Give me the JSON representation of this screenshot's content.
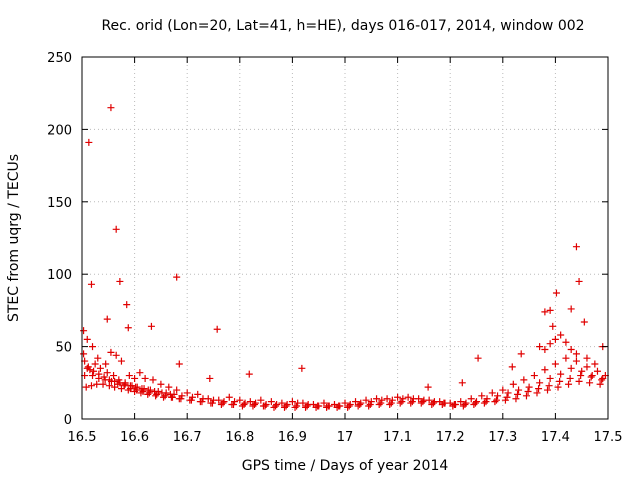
{
  "chart_data": {
    "type": "scatter",
    "title": "Rec. orid (Lon=20, Lat=41, h=HE), days 016-017, 2014, window 002",
    "xlabel": "GPS time / Days of year 2014",
    "ylabel": "STEC from uqrg / TECUs",
    "xlim": [
      16.5,
      17.5
    ],
    "ylim": [
      0,
      250
    ],
    "xticks": [
      16.5,
      16.6,
      16.7,
      16.8,
      16.9,
      17,
      17.1,
      17.2,
      17.3,
      17.4,
      17.5
    ],
    "xtick_labels": [
      "16.5",
      "16.6",
      "16.7",
      "16.8",
      "16.9",
      "17",
      "17.1",
      "17.2",
      "17.3",
      "17.4",
      "17.5"
    ],
    "yticks": [
      0,
      50,
      100,
      150,
      200,
      250
    ],
    "ytick_labels": [
      "0",
      "50",
      "100",
      "150",
      "200",
      "250"
    ],
    "grid": true,
    "marker": "+",
    "color": "#e00000",
    "series": [
      {
        "name": "STEC",
        "x": [
          16.503,
          16.513,
          16.518,
          16.548,
          16.555,
          16.565,
          16.572,
          16.585,
          16.588,
          16.632,
          16.68,
          16.685,
          16.757,
          16.918,
          17.44,
          17.445,
          17.402,
          17.43,
          17.455,
          17.38,
          17.39,
          17.395,
          17.318,
          17.335,
          17.253,
          17.223,
          17.158,
          16.818,
          16.743,
          16.503,
          16.51,
          16.52,
          16.53,
          16.545,
          16.555,
          16.565,
          16.575,
          16.59,
          16.6,
          16.61,
          16.62,
          16.635,
          16.65,
          16.665,
          16.68,
          16.7,
          16.72,
          16.74,
          16.76,
          16.78,
          16.8,
          16.82,
          16.84,
          16.86,
          16.88,
          16.9,
          16.92,
          16.94,
          16.96,
          16.98,
          17.0,
          17.02,
          17.04,
          17.06,
          17.08,
          17.1,
          17.12,
          17.14,
          17.16,
          17.18,
          17.2,
          17.22,
          17.24,
          17.26,
          17.28,
          17.3,
          17.32,
          17.34,
          17.36,
          17.38,
          17.4,
          17.42,
          17.44,
          17.46,
          17.48,
          17.495,
          16.505,
          16.515,
          16.525,
          16.535,
          16.548,
          16.56,
          16.57,
          16.582,
          16.595,
          16.605,
          16.618,
          16.63,
          16.645,
          16.66,
          16.675,
          16.69,
          16.71,
          16.73,
          16.75,
          16.77,
          16.79,
          16.81,
          16.83,
          16.85,
          16.87,
          16.89,
          16.91,
          16.93,
          16.95,
          16.97,
          16.99,
          17.01,
          17.03,
          17.05,
          17.07,
          17.09,
          17.11,
          17.13,
          17.15,
          17.17,
          17.19,
          17.21,
          17.23,
          17.25,
          17.27,
          17.29,
          17.31,
          17.33,
          17.35,
          17.37,
          17.39,
          17.41,
          17.43,
          17.45,
          17.47,
          17.49,
          16.508,
          16.518,
          16.528,
          16.54,
          16.552,
          16.562,
          16.575,
          16.588,
          16.6,
          16.612,
          16.625,
          16.64,
          16.655,
          16.67,
          16.685,
          16.705,
          16.725,
          16.745,
          16.765,
          16.785,
          16.805,
          16.825,
          16.845,
          16.865,
          16.885,
          16.905,
          16.925,
          16.945,
          16.965,
          16.985,
          17.005,
          17.025,
          17.045,
          17.065,
          17.085,
          17.105,
          17.125,
          17.145,
          17.165,
          17.185,
          17.205,
          17.225,
          17.245,
          17.265,
          17.285,
          17.305,
          17.325,
          17.345,
          17.365,
          17.385,
          17.405,
          17.425,
          17.445,
          17.465,
          17.485,
          16.51,
          16.52,
          16.532,
          16.544,
          16.556,
          16.568,
          16.58,
          16.592,
          16.604,
          16.616,
          16.628,
          16.642,
          16.658,
          16.672,
          16.688,
          16.708,
          16.728,
          16.748,
          16.768,
          16.788,
          16.808,
          16.828,
          16.848,
          16.868,
          16.888,
          16.908,
          16.928,
          16.948,
          16.968,
          16.988,
          17.008,
          17.028,
          17.048,
          17.068,
          17.088,
          17.108,
          17.128,
          17.148,
          17.168,
          17.188,
          17.208,
          17.228,
          17.248,
          17.268,
          17.288,
          17.308,
          17.328,
          17.348,
          17.368,
          17.388,
          17.408,
          17.428,
          17.448,
          17.468,
          17.488,
          16.505,
          16.512,
          16.522,
          16.532,
          16.542,
          16.552,
          16.562,
          16.572,
          16.582,
          16.592,
          16.602,
          16.614,
          16.626,
          16.638,
          16.652,
          16.668,
          17.37,
          17.38,
          17.39,
          17.4,
          17.41,
          17.42,
          17.43,
          17.44,
          17.46,
          17.475,
          17.49
        ],
        "y": [
          61,
          191,
          93,
          69,
          215,
          131,
          95,
          79,
          63,
          64,
          98,
          38,
          62,
          35,
          119,
          95,
          87,
          76,
          67,
          74,
          75,
          64,
          36,
          45,
          42,
          25,
          22,
          31,
          28,
          45,
          55,
          50,
          42,
          38,
          46,
          44,
          40,
          30,
          28,
          32,
          28,
          27,
          24,
          22,
          20,
          18,
          17,
          14,
          13,
          15,
          13,
          12,
          13,
          12,
          11,
          12,
          11,
          10,
          11,
          10,
          11,
          12,
          13,
          14,
          14,
          15,
          15,
          14,
          13,
          12,
          11,
          12,
          14,
          16,
          18,
          20,
          24,
          27,
          30,
          34,
          38,
          42,
          40,
          36,
          33,
          30,
          30,
          34,
          38,
          35,
          32,
          30,
          27,
          25,
          23,
          22,
          21,
          20,
          19,
          18,
          17,
          16,
          15,
          14,
          13,
          12,
          12,
          11,
          11,
          10,
          10,
          10,
          11,
          10,
          9,
          9,
          9,
          10,
          11,
          12,
          13,
          13,
          14,
          14,
          13,
          12,
          11,
          10,
          11,
          12,
          14,
          16,
          18,
          20,
          22,
          25,
          28,
          31,
          35,
          33,
          30,
          28,
          22,
          23,
          24,
          24,
          23,
          22,
          21,
          20,
          19,
          18,
          17,
          16,
          15,
          15,
          14,
          13,
          12,
          11,
          10,
          10,
          9,
          9,
          9,
          8,
          8,
          8,
          8,
          8,
          8,
          8,
          8,
          9,
          9,
          10,
          10,
          11,
          11,
          11,
          10,
          10,
          9,
          9,
          10,
          11,
          12,
          13,
          14,
          16,
          18,
          20,
          22,
          24,
          26,
          25,
          24,
          35,
          30,
          28,
          27,
          26,
          24,
          23,
          21,
          20,
          19,
          18,
          17,
          16,
          15,
          14,
          13,
          12,
          11,
          11,
          10,
          10,
          10,
          9,
          9,
          9,
          9,
          9,
          9,
          9,
          9,
          9,
          10,
          10,
          11,
          11,
          12,
          12,
          12,
          11,
          11,
          10,
          10,
          11,
          12,
          13,
          15,
          17,
          19,
          21,
          23,
          26,
          28,
          30,
          29,
          27,
          40,
          36,
          33,
          31,
          29,
          27,
          26,
          25,
          24,
          23,
          22,
          21,
          20,
          19,
          18,
          17,
          50,
          48,
          52,
          55,
          58,
          53,
          48,
          45,
          42,
          38,
          50
        ]
      }
    ]
  }
}
